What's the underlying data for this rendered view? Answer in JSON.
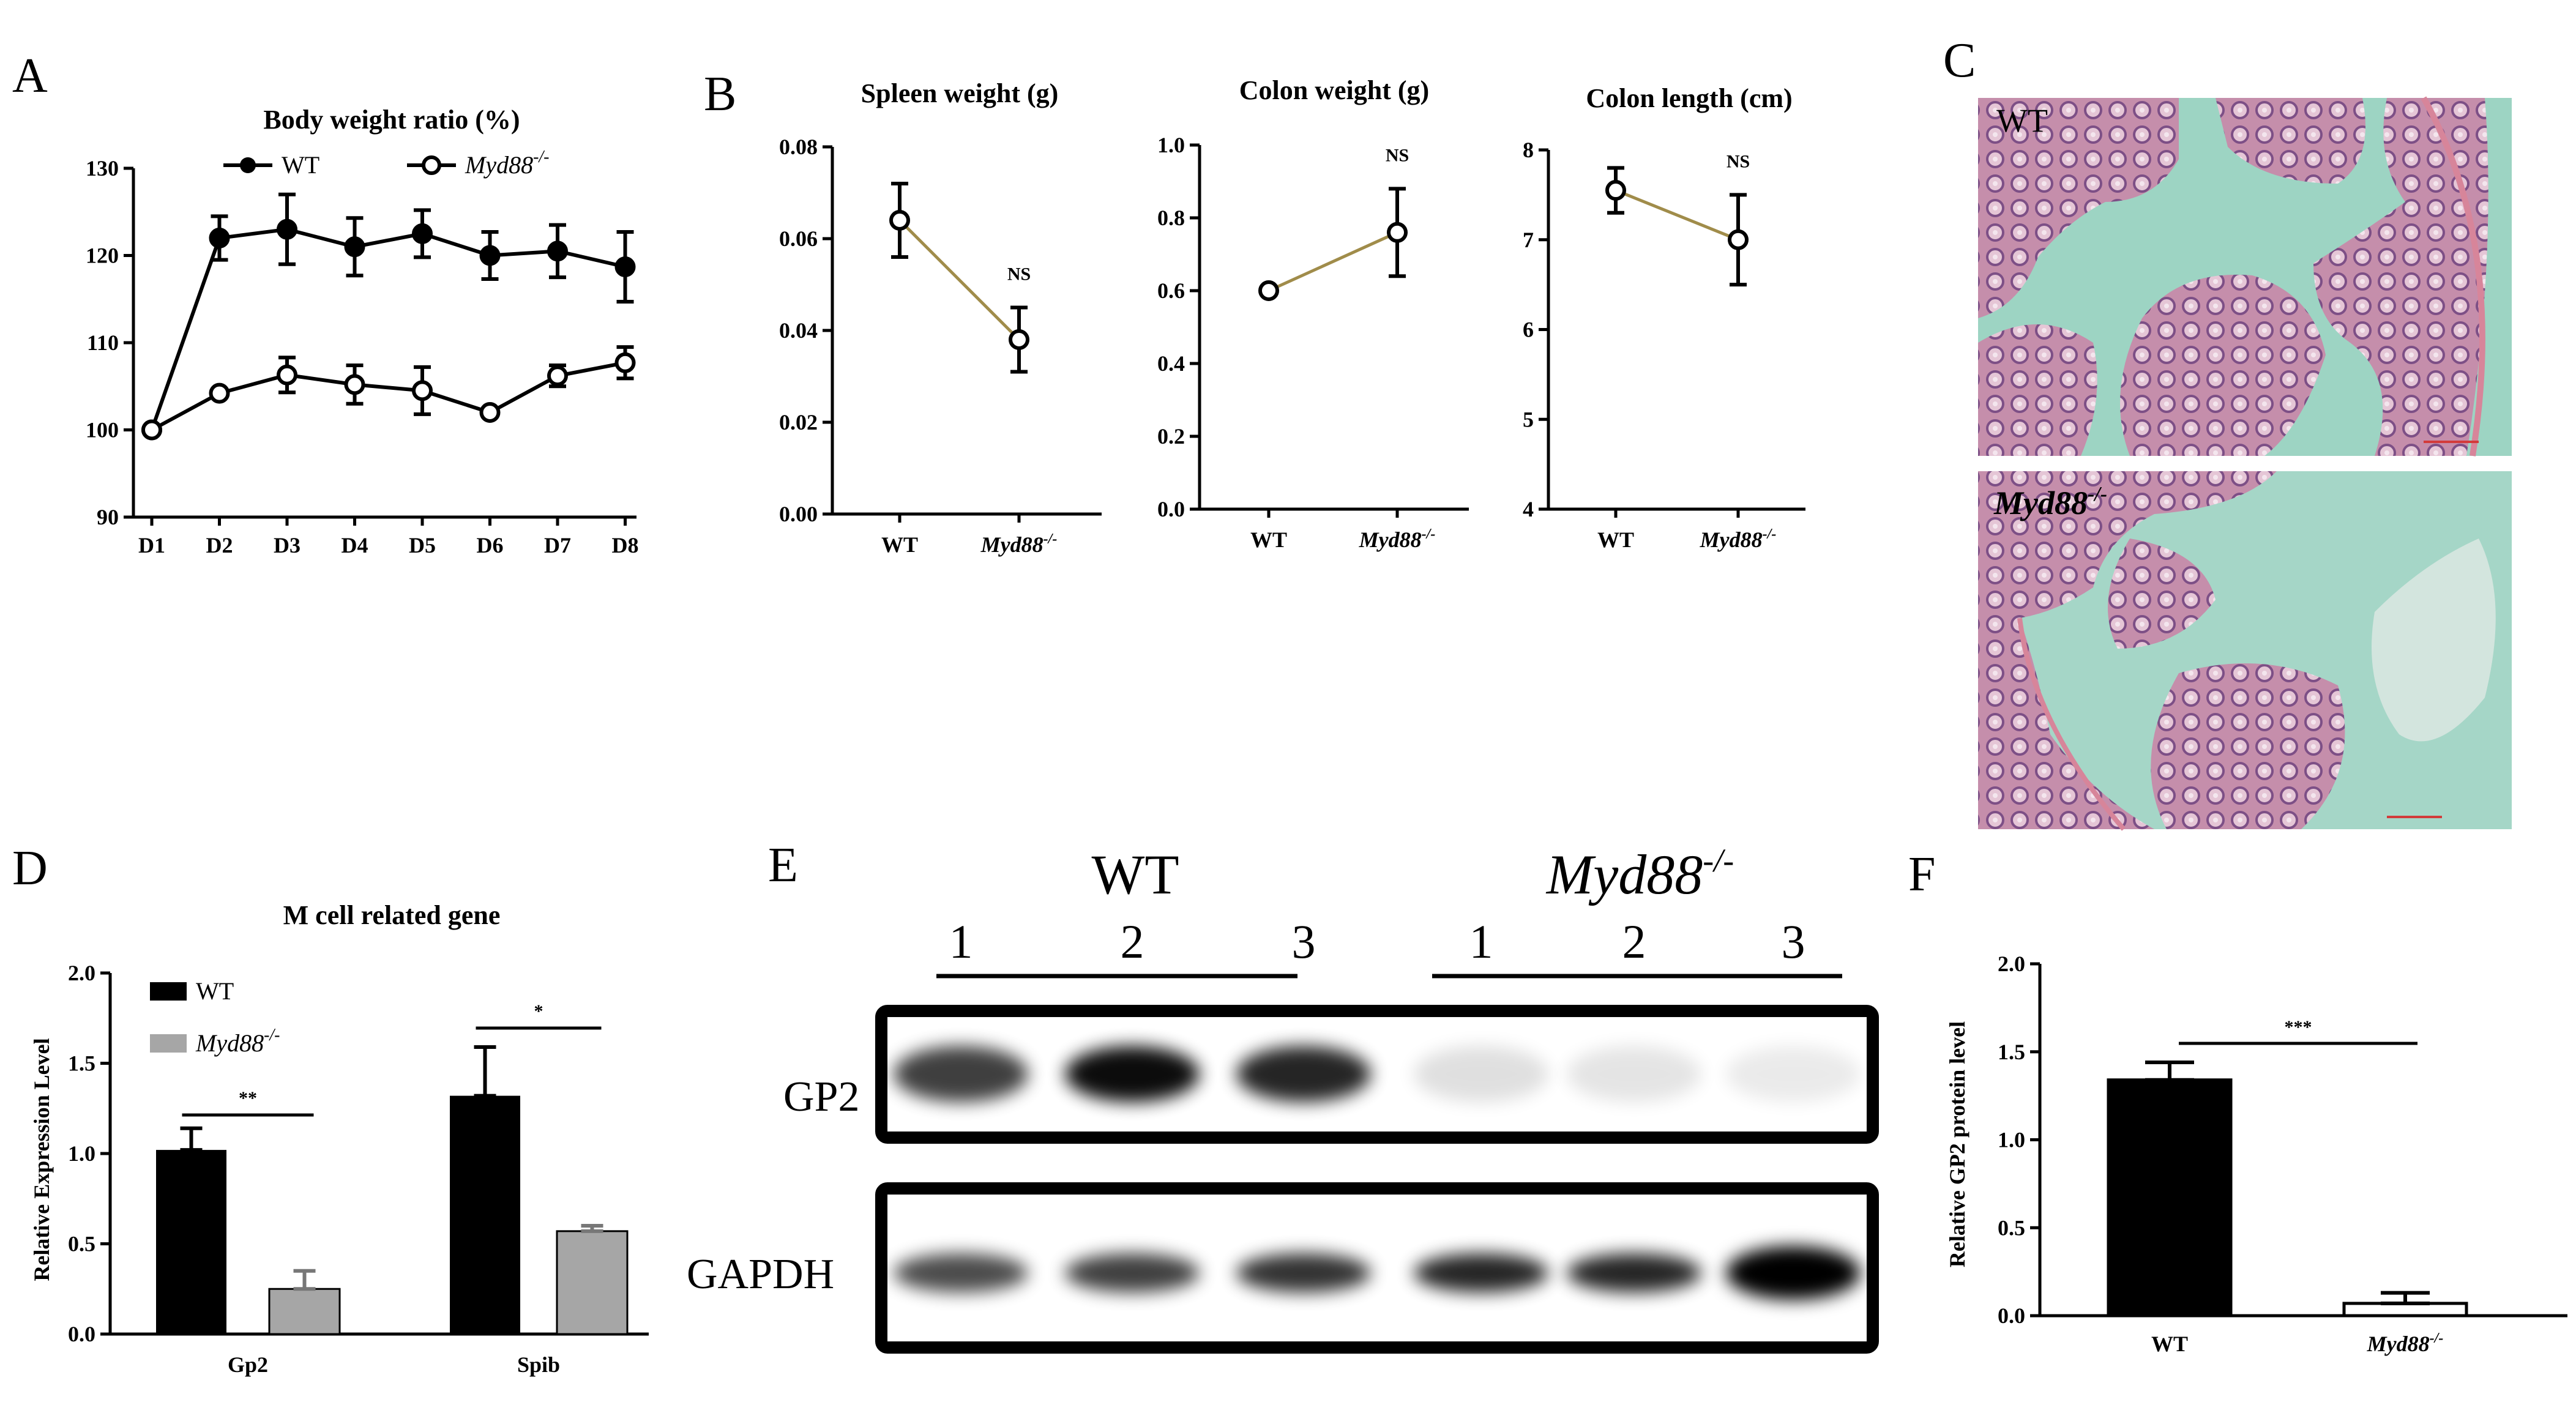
{
  "panels": {
    "A": "A",
    "B": "B",
    "C": "C",
    "D": "D",
    "E": "E",
    "F": "F"
  },
  "chart_data": [
    {
      "id": "A",
      "type": "line",
      "title": "Body weight ratio (%)",
      "categories": [
        "D1",
        "D2",
        "D3",
        "D4",
        "D5",
        "D6",
        "D7",
        "D8"
      ],
      "ylim": [
        90,
        130
      ],
      "yticks": [
        90,
        100,
        110,
        120,
        130
      ],
      "legend": [
        "WT",
        "Myd88-/-"
      ],
      "legend_sup": "-/-",
      "legend_base": "Myd88",
      "series": [
        {
          "name": "WT",
          "values": [
            100,
            122,
            123,
            121,
            122.5,
            120,
            120.5,
            118.7
          ],
          "errors": [
            0,
            2.5,
            4,
            3.3,
            2.7,
            2.7,
            3,
            4
          ]
        },
        {
          "name": "Myd88-/-",
          "values": [
            100,
            104.2,
            106.3,
            105.2,
            104.5,
            102,
            106.2,
            107.7
          ],
          "errors": [
            0,
            0,
            2,
            2.2,
            2.7,
            0,
            1.2,
            1.8
          ]
        }
      ],
      "grid": false
    },
    {
      "id": "B1",
      "type": "line",
      "title": "Spleen weight (g)",
      "categories": [
        "WT",
        "Myd88-/-"
      ],
      "ylim": [
        0,
        0.08
      ],
      "yticks": [
        "0.00",
        "0.02",
        "0.04",
        "0.06",
        "0.08"
      ],
      "values": [
        0.064,
        0.038
      ],
      "errors": [
        0.008,
        0.007
      ],
      "annotation": "NS"
    },
    {
      "id": "B2",
      "type": "line",
      "title": "Colon weight (g)",
      "categories": [
        "WT",
        "Myd88-/-"
      ],
      "ylim": [
        0,
        1.0
      ],
      "yticks": [
        "0.0",
        "0.2",
        "0.4",
        "0.6",
        "0.8",
        "1.0"
      ],
      "values": [
        0.6,
        0.76
      ],
      "errors": [
        0,
        0.12
      ],
      "annotation": "NS"
    },
    {
      "id": "B3",
      "type": "line",
      "title": "Colon length (cm)",
      "categories": [
        "WT",
        "Myd88-/-"
      ],
      "ylim": [
        4,
        8
      ],
      "yticks": [
        "4",
        "5",
        "6",
        "7",
        "8"
      ],
      "values": [
        7.55,
        7.0
      ],
      "errors": [
        0.25,
        0.5
      ],
      "annotation": "NS"
    },
    {
      "id": "D",
      "type": "bar",
      "title": "M cell related gene",
      "ylabel": "Relative Expression Level",
      "categories": [
        "Gp2",
        "Spib"
      ],
      "ylim": [
        0,
        2.0
      ],
      "yticks": [
        "0.0",
        "0.5",
        "1.0",
        "1.5",
        "2.0"
      ],
      "legend": [
        "WT",
        "Myd88-/-"
      ],
      "series": [
        {
          "name": "WT",
          "values": [
            1.02,
            1.32
          ],
          "errors": [
            0.12,
            0.27
          ]
        },
        {
          "name": "Myd88-/-",
          "values": [
            0.25,
            0.57
          ],
          "errors": [
            0.1,
            0.03
          ]
        }
      ],
      "significance": [
        "**",
        "*"
      ]
    },
    {
      "id": "F",
      "type": "bar",
      "ylabel": "Relative GP2 protein level",
      "categories": [
        "WT",
        "Myd88-/-"
      ],
      "ylim": [
        0,
        2.0
      ],
      "yticks": [
        "0.0",
        "0.5",
        "1.0",
        "1.5",
        "2.0"
      ],
      "values": [
        1.34,
        0.07
      ],
      "errors": [
        0.1,
        0.06
      ],
      "significance": "***"
    }
  ],
  "micrographs": {
    "top_label": "WT",
    "bottom_label_base": "Myd88",
    "bottom_label_sup": "-/-"
  },
  "blot": {
    "group_wt": "WT",
    "group_ko_base": "Myd88",
    "group_ko_sup": "-/-",
    "lanes": [
      "1",
      "2",
      "3",
      "1",
      "2",
      "3"
    ],
    "row_labels": [
      "GP2",
      "GAPDH"
    ],
    "gp2_intensity": [
      0.75,
      0.95,
      0.85,
      0.12,
      0.1,
      0.08
    ],
    "gapdh_intensity": [
      0.7,
      0.75,
      0.8,
      0.85,
      0.85,
      1.0
    ]
  },
  "colors": {
    "line_b": "#a08c4a",
    "wt_bar": "#000000",
    "ko_bar": "#a6a6a6",
    "tissue_bg": "#9dd4c3",
    "tissue": "#b8789a"
  }
}
